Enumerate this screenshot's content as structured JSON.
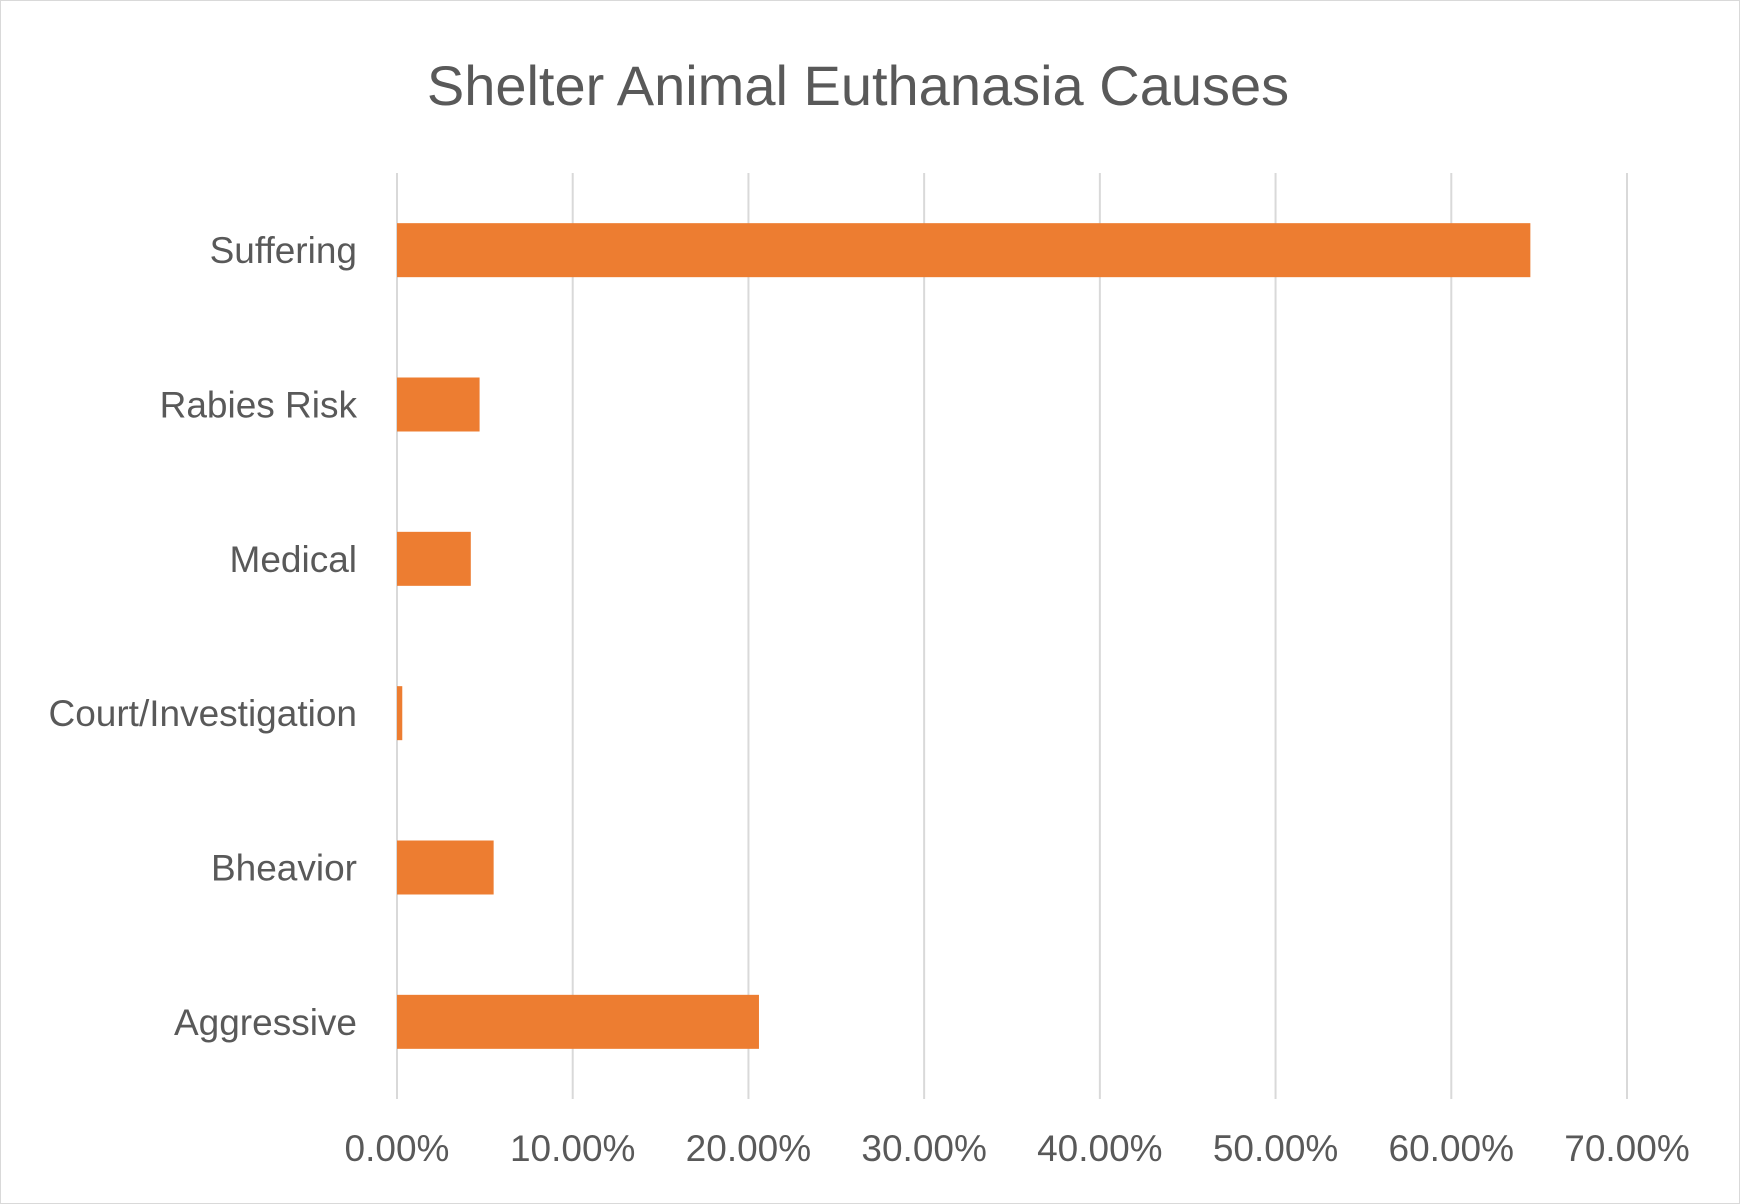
{
  "chart_data": {
    "type": "bar",
    "orientation": "horizontal",
    "title": "Shelter Animal Euthanasia Causes",
    "categories": [
      "Suffering",
      "Rabies Risk",
      "Medical",
      "Court/Investigation",
      "Bheavior",
      "Aggressive"
    ],
    "values": [
      0.645,
      0.047,
      0.042,
      0.003,
      0.055,
      0.206
    ],
    "xlim": [
      0,
      0.7
    ],
    "xticks": [
      0,
      0.1,
      0.2,
      0.3,
      0.4,
      0.5,
      0.6,
      0.7
    ],
    "xtick_labels": [
      "0.00%",
      "10.00%",
      "20.00%",
      "30.00%",
      "40.00%",
      "50.00%",
      "60.00%",
      "70.00%"
    ],
    "xlabel": "",
    "ylabel": "",
    "grid": "vertical",
    "legend": "none",
    "bar_color": "#ED7D31",
    "grid_color": "#D9D9D9",
    "text_color": "#595959"
  }
}
